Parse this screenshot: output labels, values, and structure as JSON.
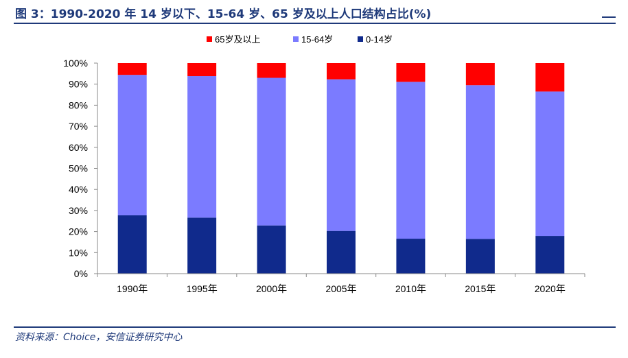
{
  "title": "图 3：1990-2020 年 14 岁以下、15-64 岁、65 岁及以上人口结构占比(%)",
  "source": "资料来源：Choice，安信证券研究中心",
  "chart_data": {
    "type": "bar",
    "stacked": true,
    "categories": [
      "1990年",
      "1995年",
      "2000年",
      "2005年",
      "2010年",
      "2015年",
      "2020年"
    ],
    "series": [
      {
        "name": "0-14岁",
        "color": "#102a8c",
        "values": [
          27.7,
          26.6,
          22.9,
          20.3,
          16.6,
          16.5,
          17.9
        ]
      },
      {
        "name": "15-64岁",
        "color": "#7b7bff",
        "values": [
          66.7,
          67.2,
          70.1,
          72.0,
          74.5,
          73.0,
          68.6
        ]
      },
      {
        "name": "65岁及以上",
        "color": "#ff0000",
        "values": [
          5.6,
          6.2,
          7.0,
          7.7,
          8.9,
          10.5,
          13.5
        ]
      }
    ],
    "legend_order": [
      "65岁及以上",
      "15-64岁",
      "0-14岁"
    ],
    "legend_position": "top",
    "ylim": [
      0,
      100
    ],
    "yticks": [
      "0%",
      "10%",
      "20%",
      "30%",
      "40%",
      "50%",
      "60%",
      "70%",
      "80%",
      "90%",
      "100%"
    ],
    "grid": false
  }
}
